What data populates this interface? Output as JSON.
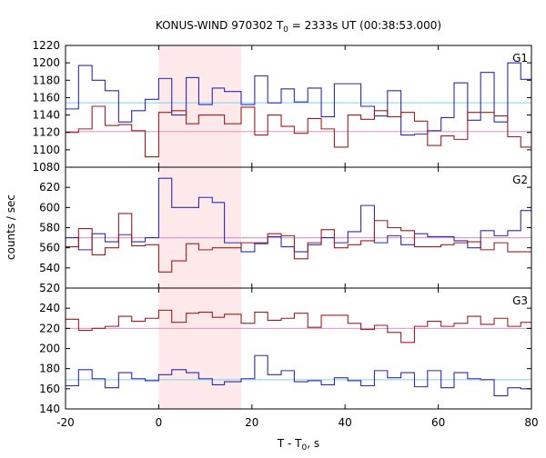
{
  "chart_data": {
    "type": "line",
    "title": "KONUS-WIND 970302 T0 = 2333s UT (00:38:53.000)",
    "title_parts": {
      "pre": "KONUS-WIND 970302 T",
      "sub": "0",
      "post": " = 2333s UT (00:38:53.000)"
    },
    "xlabel_parts": {
      "pre": "T - T",
      "sub": "0",
      "post": ", s"
    },
    "ylabel": "counts / sec",
    "xlim": [
      -20,
      80
    ],
    "xticks": [
      -20,
      0,
      20,
      40,
      60,
      80
    ],
    "highlight": {
      "x0": 0,
      "x1": 17.7,
      "color": "#fde9e9"
    },
    "colors": {
      "blue": "#2b2bb5",
      "red": "#a31c1c",
      "cyan": "#7fd0ef",
      "pink": "#f08fc2"
    },
    "panels": [
      {
        "label": "G1",
        "ylim": [
          1080,
          1220
        ],
        "yticks": [
          1080,
          1100,
          1120,
          1140,
          1160,
          1180,
          1200,
          1220
        ],
        "bg_blue": 1154,
        "bg_red": 1121,
        "blue_x": [
          -20,
          -17.2,
          -14.3,
          -11.5,
          -8.6,
          -5.8,
          -2.9,
          0,
          2.8,
          5.9,
          8.6,
          11.5,
          14.1,
          17.7,
          20.6,
          23.4,
          26.3,
          29.1,
          32,
          34.9,
          37.7,
          40.6,
          43.4,
          46.3,
          49.1,
          52,
          54.9,
          57.7,
          60.6,
          63.4,
          66.3,
          69.1,
          72,
          74.9,
          77.7,
          80
        ],
        "blue_y": [
          1147,
          1197,
          1180,
          1168,
          1132,
          1145,
          1158,
          1182,
          1140,
          1183,
          1152,
          1171,
          1167,
          1152,
          1185,
          1154,
          1170,
          1155,
          1171,
          1138,
          1176,
          1176,
          1150,
          1139,
          1168,
          1117,
          1118,
          1122,
          1137,
          1177,
          1134,
          1189,
          1132,
          1200,
          1181
        ],
        "red_x": [
          -20,
          -17.2,
          -14.3,
          -11.5,
          -8.6,
          -5.8,
          -2.9,
          0,
          2.8,
          5.9,
          8.6,
          11.5,
          14.1,
          17.7,
          20.6,
          23.4,
          26.3,
          29.1,
          32,
          34.9,
          37.7,
          40.6,
          43.4,
          46.3,
          49.1,
          52,
          54.9,
          57.7,
          60.6,
          63.4,
          66.3,
          69.1,
          72,
          74.9,
          77.7,
          80
        ],
        "red_y": [
          1120,
          1124,
          1150,
          1128,
          1129,
          1122,
          1092,
          1143,
          1145,
          1130,
          1140,
          1140,
          1130,
          1149,
          1117,
          1140,
          1127,
          1119,
          1136,
          1124,
          1103,
          1140,
          1135,
          1145,
          1138,
          1143,
          1133,
          1105,
          1116,
          1112,
          1143,
          1143,
          1139,
          1115,
          1103
        ],
        "blue_shift": 0,
        "red_shift": 0
      },
      {
        "label": "G2",
        "ylim": [
          520,
          640
        ],
        "yticks": [
          520,
          540,
          560,
          580,
          600,
          620
        ],
        "bg_blue": 570,
        "bg_red": 570,
        "blue_x": [
          -20,
          -17.2,
          -14.3,
          -11.5,
          -8.6,
          -5.8,
          -2.9,
          0,
          2.8,
          5.9,
          8.6,
          11.5,
          14.1,
          17.7,
          20.6,
          23.4,
          26.3,
          29.1,
          32,
          34.9,
          37.7,
          40.6,
          43.4,
          46.3,
          49.1,
          52,
          54.9,
          57.7,
          60.6,
          63.4,
          66.3,
          69.1,
          72,
          74.9,
          77.7,
          80
        ],
        "blue_y": [
          570,
          558,
          574,
          566,
          573,
          566,
          570,
          629,
          600,
          600,
          610,
          605,
          565,
          556,
          565,
          571,
          561,
          556,
          563,
          570,
          565,
          576,
          602,
          565,
          572,
          563,
          574,
          571,
          571,
          567,
          560,
          577,
          572,
          577,
          597
        ],
        "red_x": [
          -20,
          -17.2,
          -14.3,
          -11.5,
          -8.6,
          -5.8,
          -2.9,
          0,
          2.8,
          5.9,
          8.6,
          11.5,
          14.1,
          17.7,
          20.6,
          23.4,
          26.3,
          29.1,
          32,
          34.9,
          37.7,
          40.6,
          43.4,
          46.3,
          49.1,
          52,
          54.9,
          57.7,
          60.6,
          63.4,
          66.3,
          69.1,
          72,
          74.9,
          77.7,
          80
        ],
        "red_y": [
          561,
          579,
          553,
          560,
          594,
          562,
          563,
          536,
          547,
          564,
          558,
          560,
          560,
          565,
          564,
          574,
          572,
          549,
          565,
          578,
          560,
          563,
          567,
          587,
          580,
          577,
          561,
          561,
          563,
          565,
          566,
          558,
          565,
          556,
          556
        ],
        "blue_shift": 0,
        "red_shift": 0
      },
      {
        "label": "G3",
        "ylim": [
          140,
          260
        ],
        "yticks": [
          140,
          160,
          180,
          200,
          220,
          240
        ],
        "bg_blue": 169,
        "bg_red": 220,
        "blue_x": [
          -20,
          -17.2,
          -14.3,
          -11.5,
          -8.6,
          -5.8,
          -2.9,
          0,
          2.8,
          5.9,
          8.6,
          11.5,
          14.1,
          17.7,
          20.6,
          23.4,
          26.3,
          29.1,
          32,
          34.9,
          37.7,
          40.6,
          43.4,
          46.3,
          49.1,
          52,
          54.9,
          57.7,
          60.6,
          63.4,
          66.3,
          69.1,
          72,
          74.9,
          77.7,
          80
        ],
        "blue_y": [
          163,
          179,
          170,
          161,
          176,
          170,
          168,
          174,
          179,
          176,
          170,
          164,
          167,
          170,
          193,
          174,
          178,
          167,
          168,
          164,
          171,
          168,
          163,
          178,
          171,
          176,
          162,
          178,
          161,
          176,
          170,
          169,
          153,
          161,
          160
        ],
        "red_x": [
          -20,
          -17.2,
          -14.3,
          -11.5,
          -8.6,
          -5.8,
          -2.9,
          0,
          2.8,
          5.9,
          8.6,
          11.5,
          14.1,
          17.7,
          20.6,
          23.4,
          26.3,
          29.1,
          32,
          34.9,
          37.7,
          40.6,
          43.4,
          46.3,
          49.1,
          52,
          54.9,
          57.7,
          60.6,
          63.4,
          66.3,
          69.1,
          72,
          74.9,
          77.7,
          80
        ],
        "red_y": [
          229,
          218,
          220,
          222,
          232,
          227,
          230,
          238,
          226,
          235,
          236,
          231,
          234,
          225,
          236,
          228,
          230,
          235,
          221,
          233,
          233,
          225,
          219,
          223,
          216,
          206,
          222,
          227,
          222,
          225,
          232,
          224,
          230,
          222,
          226
        ],
        "blue_shift": 0,
        "red_shift": 0
      }
    ]
  }
}
